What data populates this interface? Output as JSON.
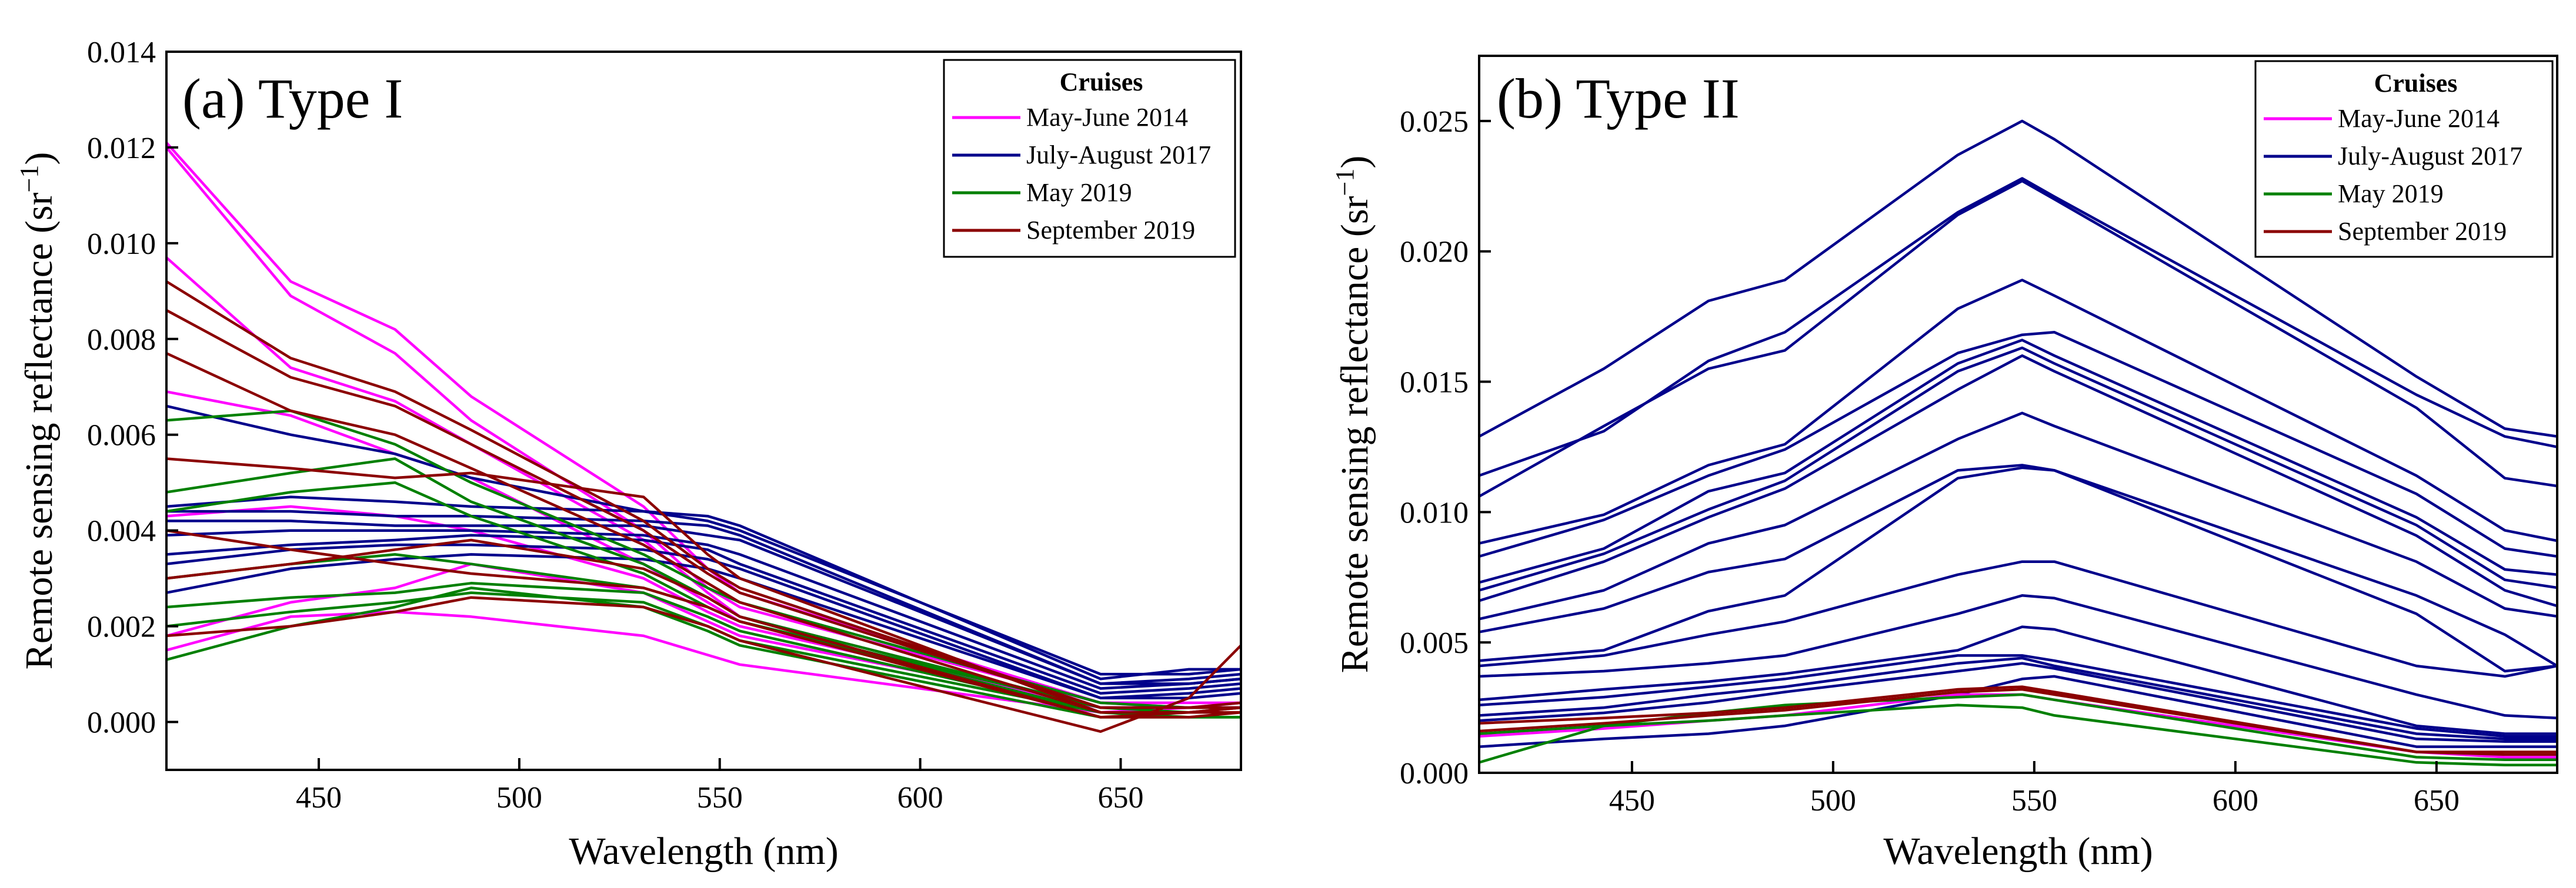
{
  "colors": {
    "May-June 2014": "#ff00ff",
    "July-August 2017": "#00008b",
    "May 2019": "#008000",
    "September 2019": "#8b0000"
  },
  "chart_data": [
    {
      "type": "line",
      "title": "(a) Type I",
      "xlabel": "Wavelength (nm)",
      "ylabel_main": "Remote sensing reflectance (sr",
      "ylabel_sup": "−1",
      "ylabel_close": ")",
      "xlim": [
        412,
        680
      ],
      "ylim": [
        -0.001,
        0.014
      ],
      "xticks": [
        450,
        500,
        550,
        600,
        650
      ],
      "xtick_labels": [
        "450",
        "500",
        "550",
        "600",
        "650"
      ],
      "yticks": [
        0,
        0.002,
        0.004,
        0.006,
        0.008,
        0.01,
        0.012,
        0.014
      ],
      "ytick_labels": [
        "0.000",
        "0.002",
        "0.004",
        "0.006",
        "0.008",
        "0.010",
        "0.012",
        "0.014"
      ],
      "grid": false,
      "legend_position": "top-right",
      "legend": {
        "title": "Cruises",
        "entries": [
          "May-June 2014",
          "July-August 2017",
          "May 2019",
          "September 2019"
        ]
      },
      "wavelengths": [
        412,
        443,
        469,
        488,
        531,
        547,
        555,
        645,
        667,
        680
      ],
      "series": [
        {
          "name": "May-June 2014",
          "values": [
            0.0121,
            0.0092,
            0.0082,
            0.0068,
            0.0045,
            0.0032,
            0.0027,
            0.0004,
            0.0004,
            0.0004
          ]
        },
        {
          "name": "May-June 2014",
          "values": [
            0.012,
            0.0089,
            0.0077,
            0.0063,
            0.004,
            0.0028,
            0.0024,
            0.0004,
            0.0003,
            0.0004
          ]
        },
        {
          "name": "May-June 2014",
          "values": [
            0.0097,
            0.0074,
            0.0067,
            0.0058,
            0.0038,
            0.0027,
            0.0022,
            0.0003,
            0.0003,
            0.0003
          ]
        },
        {
          "name": "May-June 2014",
          "values": [
            0.0069,
            0.0064,
            0.0056,
            0.0051,
            0.0033,
            0.0025,
            0.0021,
            0.0002,
            0.0003,
            0.0003
          ]
        },
        {
          "name": "May-June 2014",
          "values": [
            0.0043,
            0.0045,
            0.0043,
            0.004,
            0.003,
            0.0023,
            0.002,
            0.0003,
            0.0003,
            0.0003
          ]
        },
        {
          "name": "May-June 2014",
          "values": [
            0.0018,
            0.0025,
            0.0028,
            0.0033,
            0.0027,
            0.0021,
            0.0018,
            0.0003,
            0.0003,
            0.0003
          ]
        },
        {
          "name": "May-June 2014",
          "values": [
            0.0015,
            0.0022,
            0.0023,
            0.0022,
            0.0018,
            0.0014,
            0.0012,
            0.0002,
            0.0002,
            0.0002
          ]
        },
        {
          "name": "July-August 2017",
          "values": [
            0.0066,
            0.006,
            0.0056,
            0.0051,
            0.0044,
            0.0042,
            0.004,
            0.001,
            0.001,
            0.0011
          ]
        },
        {
          "name": "July-August 2017",
          "values": [
            0.0045,
            0.0047,
            0.0046,
            0.0045,
            0.0044,
            0.0043,
            0.0041,
            0.0009,
            0.0011,
            0.0011
          ]
        },
        {
          "name": "July-August 2017",
          "values": [
            0.0044,
            0.0044,
            0.0043,
            0.0043,
            0.0042,
            0.0041,
            0.0039,
            0.0008,
            0.0009,
            0.001
          ]
        },
        {
          "name": "July-August 2017",
          "values": [
            0.0042,
            0.0042,
            0.0041,
            0.0041,
            0.0041,
            0.0039,
            0.0038,
            0.0008,
            0.0008,
            0.0009
          ]
        },
        {
          "name": "July-August 2017",
          "values": [
            0.0039,
            0.004,
            0.004,
            0.004,
            0.0039,
            0.0037,
            0.0035,
            0.0007,
            0.0008,
            0.0009
          ]
        },
        {
          "name": "July-August 2017",
          "values": [
            0.0035,
            0.0037,
            0.0038,
            0.0039,
            0.0038,
            0.0036,
            0.0033,
            0.0006,
            0.0007,
            0.0008
          ]
        },
        {
          "name": "July-August 2017",
          "values": [
            0.0033,
            0.0036,
            0.0037,
            0.0037,
            0.0036,
            0.0034,
            0.0032,
            0.0005,
            0.0006,
            0.0007
          ]
        },
        {
          "name": "July-August 2017",
          "values": [
            0.0027,
            0.0032,
            0.0034,
            0.0035,
            0.0034,
            0.0032,
            0.003,
            0.0005,
            0.0005,
            0.0006
          ]
        },
        {
          "name": "May 2019",
          "values": [
            0.0063,
            0.0065,
            0.0058,
            0.005,
            0.0035,
            0.0028,
            0.0025,
            0.0004,
            0.0003,
            0.0003
          ]
        },
        {
          "name": "May 2019",
          "values": [
            0.0048,
            0.0052,
            0.0055,
            0.0046,
            0.0033,
            0.0026,
            0.0022,
            0.0003,
            0.0003,
            0.0003
          ]
        },
        {
          "name": "May 2019",
          "values": [
            0.0044,
            0.0048,
            0.005,
            0.0043,
            0.0031,
            0.0024,
            0.0021,
            0.0003,
            0.0002,
            0.0002
          ]
        },
        {
          "name": "May 2019",
          "values": [
            0.003,
            0.0033,
            0.0035,
            0.0033,
            0.0028,
            0.0024,
            0.0021,
            0.0002,
            0.0002,
            0.0002
          ]
        },
        {
          "name": "May 2019",
          "values": [
            0.0024,
            0.0026,
            0.0027,
            0.0029,
            0.0027,
            0.0022,
            0.0019,
            0.0002,
            0.0002,
            0.0002
          ]
        },
        {
          "name": "May 2019",
          "values": [
            0.002,
            0.0023,
            0.0025,
            0.0027,
            0.0025,
            0.002,
            0.0017,
            0.0002,
            0.0001,
            0.0001
          ]
        },
        {
          "name": "May 2019",
          "values": [
            0.0013,
            0.002,
            0.0024,
            0.0028,
            0.0024,
            0.0019,
            0.0016,
            0.0001,
            0.0001,
            0.0001
          ]
        },
        {
          "name": "September 2019",
          "values": [
            0.0092,
            0.0076,
            0.0069,
            0.0061,
            0.0042,
            0.0032,
            0.0028,
            0.0003,
            0.0003,
            0.0004
          ]
        },
        {
          "name": "September 2019",
          "values": [
            0.0086,
            0.0072,
            0.0066,
            0.0058,
            0.004,
            0.0031,
            0.0027,
            0.0003,
            0.0003,
            0.0003
          ]
        },
        {
          "name": "September 2019",
          "values": [
            0.0077,
            0.0065,
            0.006,
            0.0053,
            0.0037,
            0.0029,
            0.0025,
            0.0002,
            0.0002,
            0.0003
          ]
        },
        {
          "name": "September 2019",
          "values": [
            0.0055,
            0.0053,
            0.0051,
            0.0052,
            0.0047,
            0.0035,
            0.003,
            0.0002,
            0.0002,
            0.0003
          ]
        },
        {
          "name": "September 2019",
          "values": [
            0.004,
            0.0036,
            0.0033,
            0.0031,
            0.0028,
            0.0024,
            0.0021,
            0.0001,
            0.0002,
            0.0002
          ]
        },
        {
          "name": "September 2019",
          "values": [
            0.003,
            0.0033,
            0.0036,
            0.0038,
            0.0032,
            0.0026,
            0.0022,
            0.0001,
            0.0001,
            0.0002
          ]
        },
        {
          "name": "September 2019",
          "values": [
            0.0018,
            0.002,
            0.0023,
            0.0026,
            0.0024,
            0.002,
            0.0017,
            -0.0002,
            0.0005,
            0.0016
          ]
        }
      ]
    },
    {
      "type": "line",
      "title": "(b) Type II",
      "xlabel": "Wavelength (nm)",
      "ylabel_main": "Remote sensing reflectance (sr",
      "ylabel_sup": "−1",
      "ylabel_close": ")",
      "xlim": [
        412,
        680
      ],
      "ylim": [
        0,
        0.0275
      ],
      "xticks": [
        450,
        500,
        550,
        600,
        650
      ],
      "xtick_labels": [
        "450",
        "500",
        "550",
        "600",
        "650"
      ],
      "yticks": [
        0,
        0.005,
        0.01,
        0.015,
        0.02,
        0.025
      ],
      "ytick_labels": [
        "0.000",
        "0.005",
        "0.010",
        "0.015",
        "0.020",
        "0.025"
      ],
      "grid": false,
      "legend_position": "top-right",
      "legend": {
        "title": "Cruises",
        "entries": [
          "May-June 2014",
          "July-August 2017",
          "May 2019",
          "September 2019"
        ]
      },
      "wavelengths": [
        412,
        443,
        469,
        488,
        531,
        547,
        555,
        645,
        667,
        680
      ],
      "series": [
        {
          "name": "July-August 2017",
          "values": [
            0.0129,
            0.0155,
            0.0181,
            0.0189,
            0.0237,
            0.025,
            0.0243,
            0.0152,
            0.0132,
            0.0129
          ]
        },
        {
          "name": "July-August 2017",
          "values": [
            0.0114,
            0.0131,
            0.0158,
            0.0169,
            0.0215,
            0.0228,
            0.0221,
            0.0145,
            0.0129,
            0.0125
          ]
        },
        {
          "name": "July-August 2017",
          "values": [
            0.0106,
            0.0133,
            0.0155,
            0.0162,
            0.0214,
            0.0227,
            0.022,
            0.014,
            0.0113,
            0.011
          ]
        },
        {
          "name": "July-August 2017",
          "values": [
            0.0088,
            0.0099,
            0.0118,
            0.0126,
            0.0178,
            0.0189,
            0.0183,
            0.0114,
            0.0093,
            0.0089
          ]
        },
        {
          "name": "July-August 2017",
          "values": [
            0.0083,
            0.0097,
            0.0114,
            0.0124,
            0.0161,
            0.0168,
            0.0169,
            0.0107,
            0.0086,
            0.0083
          ]
        },
        {
          "name": "July-August 2017",
          "values": [
            0.0073,
            0.0086,
            0.0108,
            0.0115,
            0.0157,
            0.0166,
            0.016,
            0.0098,
            0.0078,
            0.0076
          ]
        },
        {
          "name": "July-August 2017",
          "values": [
            0.007,
            0.0084,
            0.0101,
            0.0112,
            0.0154,
            0.0163,
            0.0157,
            0.0095,
            0.0074,
            0.0071
          ]
        },
        {
          "name": "July-August 2017",
          "values": [
            0.0066,
            0.0081,
            0.0098,
            0.0109,
            0.0147,
            0.016,
            0.0154,
            0.0091,
            0.007,
            0.0064
          ]
        },
        {
          "name": "July-August 2017",
          "values": [
            0.0059,
            0.007,
            0.0088,
            0.0095,
            0.0128,
            0.0138,
            0.0133,
            0.0081,
            0.0063,
            0.006
          ]
        },
        {
          "name": "July-August 2017",
          "values": [
            0.0054,
            0.0063,
            0.0077,
            0.0082,
            0.0116,
            0.0118,
            0.0116,
            0.0068,
            0.0053,
            0.0041
          ]
        },
        {
          "name": "July-August 2017",
          "values": [
            0.0043,
            0.0047,
            0.0062,
            0.0068,
            0.0113,
            0.0117,
            0.0116,
            0.0061,
            0.0039,
            0.0041
          ]
        },
        {
          "name": "July-August 2017",
          "values": [
            0.0041,
            0.0045,
            0.0053,
            0.0058,
            0.0076,
            0.0081,
            0.0081,
            0.0041,
            0.0037,
            0.0041
          ]
        },
        {
          "name": "July-August 2017",
          "values": [
            0.0037,
            0.0039,
            0.0042,
            0.0045,
            0.0061,
            0.0068,
            0.0067,
            0.003,
            0.0022,
            0.0021
          ]
        },
        {
          "name": "July-August 2017",
          "values": [
            0.0028,
            0.0032,
            0.0035,
            0.0038,
            0.0047,
            0.0056,
            0.0055,
            0.0018,
            0.0015,
            0.0015
          ]
        },
        {
          "name": "July-August 2017",
          "values": [
            0.0026,
            0.0029,
            0.0033,
            0.0036,
            0.0045,
            0.0045,
            0.0043,
            0.0017,
            0.0014,
            0.0014
          ]
        },
        {
          "name": "July-August 2017",
          "values": [
            0.0022,
            0.0025,
            0.003,
            0.0033,
            0.0042,
            0.0044,
            0.0041,
            0.0015,
            0.0013,
            0.0013
          ]
        },
        {
          "name": "July-August 2017",
          "values": [
            0.002,
            0.0023,
            0.0027,
            0.0031,
            0.0039,
            0.0042,
            0.004,
            0.0013,
            0.0012,
            0.0012
          ]
        },
        {
          "name": "July-August 2017",
          "values": [
            0.001,
            0.0013,
            0.0015,
            0.0018,
            0.003,
            0.0036,
            0.0037,
            0.001,
            0.001,
            0.001
          ]
        },
        {
          "name": "May-June 2014",
          "values": [
            0.0014,
            0.0017,
            0.002,
            0.0022,
            0.003,
            0.003,
            0.0028,
            0.0008,
            0.0006,
            0.0006
          ]
        },
        {
          "name": "May 2019",
          "values": [
            0.0004,
            0.0018,
            0.0023,
            0.0026,
            0.0029,
            0.003,
            0.0028,
            0.0006,
            0.0005,
            0.0005
          ]
        },
        {
          "name": "May 2019",
          "values": [
            0.0015,
            0.0018,
            0.002,
            0.0022,
            0.0026,
            0.0025,
            0.0022,
            0.0004,
            0.0003,
            0.0003
          ]
        },
        {
          "name": "September 2019",
          "values": [
            0.0019,
            0.0021,
            0.0023,
            0.0025,
            0.0032,
            0.0033,
            0.0031,
            0.0008,
            0.0008,
            0.0008
          ]
        },
        {
          "name": "September 2019",
          "values": [
            0.0016,
            0.0019,
            0.0022,
            0.0024,
            0.0031,
            0.0032,
            0.003,
            0.0008,
            0.0007,
            0.0007
          ]
        }
      ]
    }
  ]
}
